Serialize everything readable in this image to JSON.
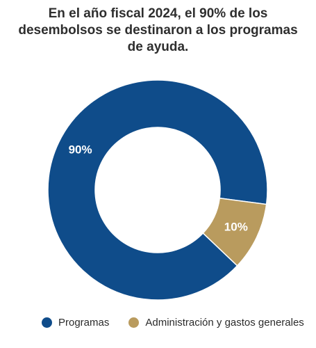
{
  "chart_data": {
    "type": "pie",
    "title": "En el año fiscal 2024, el 90% de los desembolsos se destinaron a los programas de ayuda.",
    "categories": [
      "Programas",
      "Administración y gastos generales"
    ],
    "values": [
      90,
      10
    ],
    "labels": [
      "90%",
      "10%"
    ],
    "colors": [
      "#0f4c8a",
      "#b99b5e"
    ],
    "donut": true,
    "legend": "bottom"
  }
}
